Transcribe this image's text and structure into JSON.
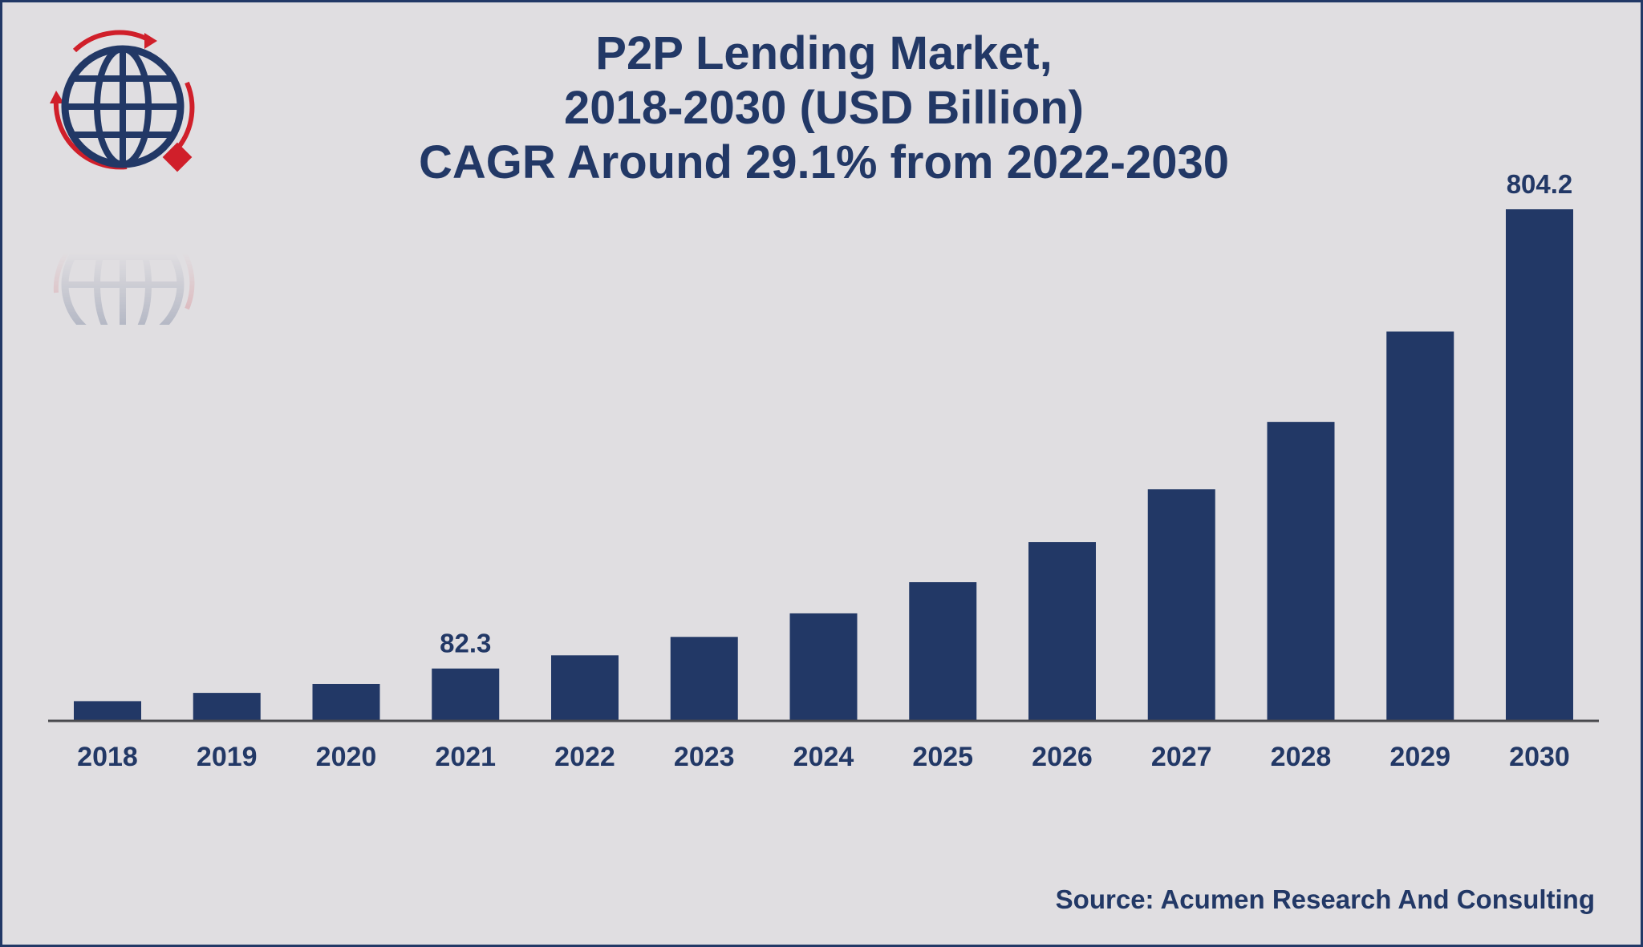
{
  "colors": {
    "bar": "#223866",
    "text": "#223866",
    "axis": "#4a4a4e",
    "background": "#e0dee1",
    "logo_red": "#d01f2a"
  },
  "logo": {
    "icon": "globe-icon"
  },
  "source": "Source: Acumen Research And Consulting",
  "chart_data": {
    "type": "bar",
    "title_lines": [
      "P2P Lending Market,",
      "2018-2030 (USD Billion)",
      "CAGR Around 29.1% from 2022-2030"
    ],
    "xlabel": "",
    "ylabel": "",
    "categories": [
      "2018",
      "2019",
      "2020",
      "2021",
      "2022",
      "2023",
      "2024",
      "2025",
      "2026",
      "2027",
      "2028",
      "2029",
      "2030"
    ],
    "values": [
      31,
      44,
      58,
      82.3,
      103,
      132,
      169,
      218,
      281,
      364,
      470,
      612,
      804.2
    ],
    "data_labels": [
      {
        "index": 3,
        "text": "82.3"
      },
      {
        "index": 12,
        "text": "804.2"
      }
    ],
    "ylim": [
      0,
      804.2
    ],
    "grid": false,
    "legend": "none"
  }
}
